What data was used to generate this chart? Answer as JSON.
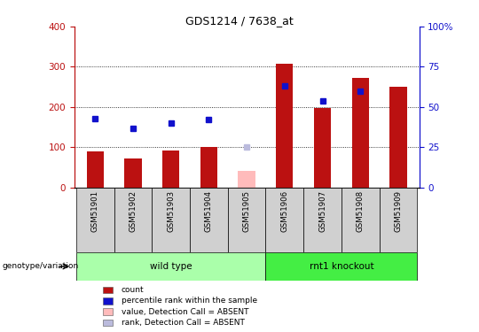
{
  "title": "GDS1214 / 7638_at",
  "samples": [
    "GSM51901",
    "GSM51902",
    "GSM51903",
    "GSM51904",
    "GSM51905",
    "GSM51906",
    "GSM51907",
    "GSM51908",
    "GSM51909"
  ],
  "count_values": [
    90,
    72,
    92,
    100,
    null,
    307,
    198,
    272,
    250
  ],
  "rank_values": [
    43,
    37,
    40,
    42,
    null,
    63,
    54,
    60,
    null
  ],
  "absent_count": [
    null,
    null,
    null,
    null,
    42,
    null,
    null,
    null,
    null
  ],
  "absent_rank": [
    null,
    null,
    null,
    null,
    25,
    null,
    null,
    null,
    null
  ],
  "ylim_left": [
    0,
    400
  ],
  "ylim_right": [
    0,
    100
  ],
  "yticks_left": [
    0,
    100,
    200,
    300,
    400
  ],
  "yticks_right": [
    0,
    25,
    50,
    75,
    100
  ],
  "yticklabels_right": [
    "0",
    "25",
    "50",
    "75",
    "100%"
  ],
  "grid_values": [
    100,
    200,
    300
  ],
  "bar_color": "#bb1111",
  "rank_color": "#1111cc",
  "absent_bar_color": "#ffbbbb",
  "absent_rank_color": "#bbbbdd",
  "grid_color": "#000000",
  "groups": [
    {
      "label": "wild type",
      "start": 0,
      "end": 4,
      "color": "#aaffaa"
    },
    {
      "label": "rnt1 knockout",
      "start": 5,
      "end": 8,
      "color": "#44ee44"
    }
  ],
  "genotype_label": "genotype/variation",
  "legend_items": [
    {
      "label": "count",
      "color": "#bb1111"
    },
    {
      "label": "percentile rank within the sample",
      "color": "#1111cc"
    },
    {
      "label": "value, Detection Call = ABSENT",
      "color": "#ffbbbb"
    },
    {
      "label": "rank, Detection Call = ABSENT",
      "color": "#bbbbdd"
    }
  ]
}
